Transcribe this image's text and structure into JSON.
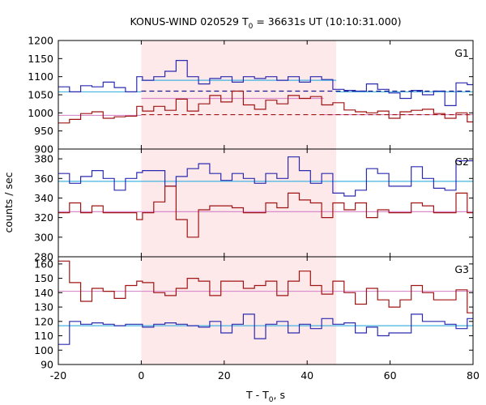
{
  "chart_data": {
    "type": "line",
    "title": "KONUS-WIND 020529 T",
    "title_sub": "0",
    "title_rest": " = 36631s UT (10:10:31.000)",
    "xlabel": "T - T",
    "xlabel_sub": "0",
    "xlabel_rest": ", s",
    "ylabel": "counts / sec",
    "xlim": [
      -20,
      80
    ],
    "x_ticks": [
      "-20",
      "0",
      "20",
      "40",
      "60",
      "80"
    ],
    "x_tick_values": [
      -20,
      0,
      20,
      40,
      60,
      80
    ],
    "highlight_interval": [
      0,
      47
    ],
    "highlight_color": "#fde8ea",
    "panels": [
      {
        "label": "G1",
        "ylim": [
          900,
          1200
        ],
        "y_ticks": [
          "900",
          "950",
          "1000",
          "1050",
          "1100",
          "1150",
          "1200"
        ],
        "y_tick_values": [
          900,
          950,
          1000,
          1050,
          1100,
          1150,
          1200
        ],
        "bin_edges": [
          -20,
          -17.3,
          -14.6,
          -11.9,
          -9.2,
          -6.5,
          -3.8,
          -1.1,
          0.3,
          3.0,
          5.7,
          8.4,
          11.1,
          13.8,
          16.5,
          19.2,
          21.9,
          24.6,
          27.3,
          30.0,
          32.7,
          35.4,
          38.1,
          40.8,
          43.5,
          46.2,
          48.9,
          51.6,
          54.3,
          57.0,
          59.7,
          62.4,
          65.1,
          67.8,
          70.5,
          73.2,
          75.9,
          78.6,
          80
        ],
        "series": [
          {
            "color": "#2b2bb0",
            "values": [
              1072,
              1058,
              1075,
              1072,
              1085,
              1070,
              1058,
              1100,
              1090,
              1100,
              1115,
              1145,
              1100,
              1080,
              1095,
              1100,
              1085,
              1100,
              1095,
              1100,
              1090,
              1100,
              1085,
              1100,
              1092,
              1065,
              1062,
              1060,
              1080,
              1065,
              1055,
              1040,
              1062,
              1050,
              1060,
              1020,
              1083,
              1078
            ]
          },
          {
            "color": "#a01414",
            "values": [
              972,
              982,
              998,
              1003,
              985,
              989,
              991,
              1018,
              1005,
              1018,
              1007,
              1038,
              1005,
              1025,
              1048,
              1030,
              1060,
              1022,
              1010,
              1035,
              1025,
              1048,
              1040,
              1045,
              1022,
              1028,
              1008,
              1003,
              1000,
              1005,
              985,
              1003,
              1007,
              1010,
              998,
              985,
              1000,
              975
            ]
          }
        ],
        "levels": [
          {
            "color": "#44b4e0",
            "value": 1058,
            "from": -20,
            "to": 0,
            "style": "solid"
          },
          {
            "color": "#44b4e0",
            "value": 1090,
            "from": 0,
            "to": 47,
            "style": "solid"
          },
          {
            "color": "#44b4e0",
            "value": 1058,
            "from": 47,
            "to": 80,
            "style": "solid"
          },
          {
            "color": "#1a1a8c",
            "value": 1060,
            "from": 0,
            "to": 80,
            "style": "dashed"
          },
          {
            "color": "#d88ccc",
            "value": 993,
            "from": -20,
            "to": 0,
            "style": "solid"
          },
          {
            "color": "#d88ccc",
            "value": 1040,
            "from": 0,
            "to": 44,
            "style": "solid"
          },
          {
            "color": "#d88ccc",
            "value": 995,
            "from": 44,
            "to": 80,
            "style": "solid"
          },
          {
            "color": "#a01414",
            "value": 995,
            "from": 0,
            "to": 80,
            "style": "dashed"
          }
        ]
      },
      {
        "label": "G2",
        "ylim": [
          280,
          390
        ],
        "y_ticks": [
          "280",
          "300",
          "320",
          "340",
          "360",
          "380"
        ],
        "y_tick_values": [
          280,
          300,
          320,
          340,
          360,
          380
        ],
        "bin_edges": [
          -20,
          -17.3,
          -14.6,
          -11.9,
          -9.2,
          -6.5,
          -3.8,
          -1.1,
          0.3,
          3.0,
          5.7,
          8.4,
          11.1,
          13.8,
          16.5,
          19.2,
          21.9,
          24.6,
          27.3,
          30.0,
          32.7,
          35.4,
          38.1,
          40.8,
          43.5,
          46.2,
          48.9,
          51.6,
          54.3,
          57.0,
          59.7,
          62.4,
          65.1,
          67.8,
          70.5,
          73.2,
          75.9,
          78.6,
          80
        ],
        "series": [
          {
            "color": "#2b2bb0",
            "values": [
              365,
              355,
              362,
              368,
              360,
              348,
              360,
              366,
              368,
              368,
              352,
              362,
              370,
              375,
              365,
              358,
              365,
              360,
              355,
              365,
              360,
              382,
              368,
              355,
              365,
              345,
              342,
              348,
              370,
              365,
              352,
              352,
              372,
              360,
              350,
              348,
              378,
              378
            ]
          },
          {
            "color": "#a01414",
            "values": [
              325,
              335,
              325,
              332,
              325,
              325,
              325,
              318,
              325,
              336,
              352,
              318,
              300,
              328,
              332,
              332,
              330,
              325,
              325,
              335,
              330,
              345,
              338,
              335,
              320,
              335,
              328,
              335,
              320,
              328,
              325,
              325,
              335,
              332,
              325,
              325,
              345,
              325
            ]
          }
        ],
        "levels": [
          {
            "color": "#44b4e0",
            "value": 357,
            "from": -20,
            "to": 80,
            "style": "solid"
          },
          {
            "color": "#d88ccc",
            "value": 326,
            "from": -20,
            "to": 80,
            "style": "solid"
          }
        ]
      },
      {
        "label": "G3",
        "ylim": [
          90,
          165
        ],
        "y_ticks": [
          "90",
          "100",
          "110",
          "120",
          "130",
          "140",
          "150",
          "160"
        ],
        "y_tick_values": [
          90,
          100,
          110,
          120,
          130,
          140,
          150,
          160
        ],
        "bin_edges": [
          -20,
          -17.3,
          -14.6,
          -11.9,
          -9.2,
          -6.5,
          -3.8,
          -1.1,
          0.3,
          3.0,
          5.7,
          8.4,
          11.1,
          13.8,
          16.5,
          19.2,
          21.9,
          24.6,
          27.3,
          30.0,
          32.7,
          35.4,
          38.1,
          40.8,
          43.5,
          46.2,
          48.9,
          51.6,
          54.3,
          57.0,
          59.7,
          62.4,
          65.1,
          67.8,
          70.5,
          73.2,
          75.9,
          78.6,
          80
        ],
        "series": [
          {
            "color": "#2b2bb0",
            "values": [
              104,
              120,
              118,
              119,
              118,
              117,
              118,
              118,
              116,
              118,
              119,
              118,
              117,
              116,
              120,
              112,
              118,
              125,
              108,
              118,
              120,
              112,
              118,
              115,
              122,
              118,
              119,
              112,
              116,
              110,
              112,
              112,
              125,
              120,
              120,
              118,
              115,
              122
            ]
          },
          {
            "color": "#a01414",
            "values": [
              162,
              147,
              134,
              143,
              141,
              136,
              145,
              148,
              147,
              140,
              138,
              143,
              150,
              148,
              138,
              148,
              148,
              143,
              145,
              148,
              138,
              148,
              155,
              145,
              139,
              148,
              140,
              132,
              143,
              135,
              130,
              135,
              145,
              140,
              135,
              135,
              142,
              126
            ]
          }
        ],
        "levels": [
          {
            "color": "#44b4e0",
            "value": 117,
            "from": -20,
            "to": 80,
            "style": "solid"
          },
          {
            "color": "#d88ccc",
            "value": 141,
            "from": -20,
            "to": 80,
            "style": "solid"
          }
        ]
      }
    ]
  }
}
